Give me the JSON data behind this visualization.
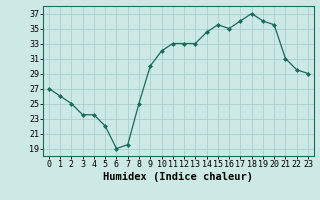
{
  "x": [
    0,
    1,
    2,
    3,
    4,
    5,
    6,
    7,
    8,
    9,
    10,
    11,
    12,
    13,
    14,
    15,
    16,
    17,
    18,
    19,
    20,
    21,
    22,
    23
  ],
  "y": [
    27,
    26,
    25,
    23.5,
    23.5,
    22,
    19,
    19.5,
    25,
    30,
    32,
    33,
    33,
    33,
    34.5,
    35.5,
    35,
    36,
    37,
    36,
    35.5,
    31,
    29.5,
    29
  ],
  "line_color": "#1a6b5a",
  "marker": "D",
  "marker_size": 2.0,
  "bg_color": "#cce9e6",
  "grid_color": "#aacfcc",
  "xlabel": "Humidex (Indice chaleur)",
  "xlim": [
    -0.5,
    23.5
  ],
  "ylim": [
    18,
    38
  ],
  "yticks": [
    19,
    21,
    23,
    25,
    27,
    29,
    31,
    33,
    35,
    37
  ],
  "xtick_labels": [
    "0",
    "1",
    "2",
    "3",
    "4",
    "5",
    "6",
    "7",
    "8",
    "9",
    "10",
    "11",
    "12",
    "13",
    "14",
    "15",
    "16",
    "17",
    "18",
    "19",
    "20",
    "21",
    "22",
    "23"
  ],
  "label_fontsize": 7.5,
  "tick_fontsize": 6.0
}
